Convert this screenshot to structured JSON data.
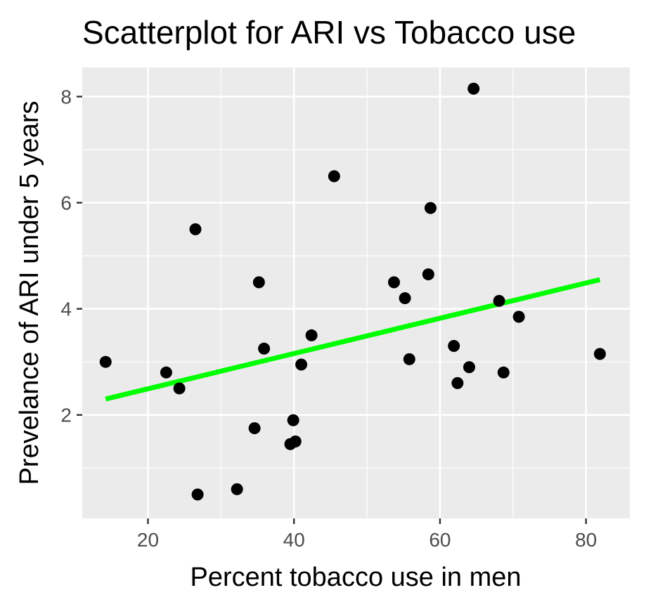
{
  "chart_data": {
    "type": "scatter",
    "title": "Scatterplot for ARI vs Tobacco use",
    "xlabel": "Percent tobacco use in men",
    "ylabel": "Prevelance of ARI under 5 years",
    "xlim": [
      11,
      86
    ],
    "ylim": [
      0.05,
      8.55
    ],
    "xticks": [
      20,
      40,
      60,
      80
    ],
    "yticks": [
      2,
      4,
      6,
      8
    ],
    "grid": true,
    "background": "#ebebeb",
    "point_color": "#000000",
    "trend_color": "#00ff00",
    "points": [
      {
        "x": 14.2,
        "y": 3.0
      },
      {
        "x": 22.5,
        "y": 2.8
      },
      {
        "x": 24.3,
        "y": 2.5
      },
      {
        "x": 26.5,
        "y": 5.5
      },
      {
        "x": 26.8,
        "y": 0.5
      },
      {
        "x": 32.2,
        "y": 0.6
      },
      {
        "x": 34.6,
        "y": 1.75
      },
      {
        "x": 35.2,
        "y": 4.5
      },
      {
        "x": 35.9,
        "y": 3.25
      },
      {
        "x": 39.5,
        "y": 1.45
      },
      {
        "x": 39.9,
        "y": 1.9
      },
      {
        "x": 40.2,
        "y": 1.5
      },
      {
        "x": 41.0,
        "y": 2.95
      },
      {
        "x": 42.4,
        "y": 3.5
      },
      {
        "x": 45.5,
        "y": 6.5
      },
      {
        "x": 53.7,
        "y": 4.5
      },
      {
        "x": 55.2,
        "y": 4.2
      },
      {
        "x": 55.8,
        "y": 3.05
      },
      {
        "x": 58.4,
        "y": 4.65
      },
      {
        "x": 58.7,
        "y": 5.9
      },
      {
        "x": 61.9,
        "y": 3.3
      },
      {
        "x": 62.4,
        "y": 2.6
      },
      {
        "x": 64.0,
        "y": 2.9
      },
      {
        "x": 64.6,
        "y": 8.15
      },
      {
        "x": 68.1,
        "y": 4.15
      },
      {
        "x": 68.7,
        "y": 2.8
      },
      {
        "x": 70.8,
        "y": 3.85
      },
      {
        "x": 81.9,
        "y": 3.15
      }
    ],
    "trend_line": {
      "x": [
        14.2,
        81.9
      ],
      "y": [
        2.3,
        4.55
      ]
    }
  }
}
